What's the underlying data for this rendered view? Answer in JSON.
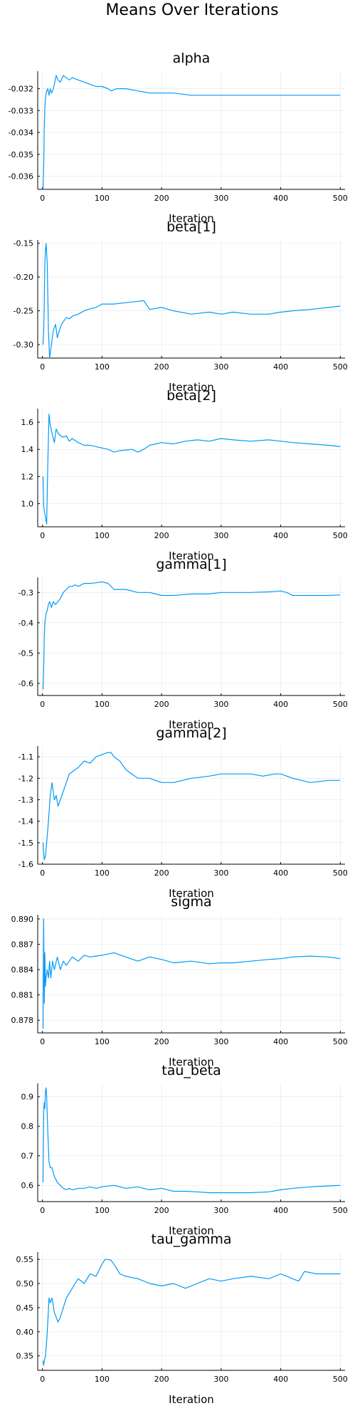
{
  "figure": {
    "title": "Means Over Iterations"
  },
  "style": {
    "line_color": "#009af9"
  },
  "chart_data": [
    {
      "type": "line",
      "title": "alpha",
      "xlabel": "Iteration",
      "xlim": [
        -8,
        508
      ],
      "xticks": [
        0,
        100,
        200,
        300,
        400,
        500
      ],
      "xtick_labels": [
        "0",
        "100",
        "200",
        "300",
        "400",
        "500"
      ],
      "ylim": [
        -0.0366,
        -0.0312
      ],
      "yticks": [
        -0.036,
        -0.035,
        -0.034,
        -0.033,
        -0.032
      ],
      "ytick_labels": [
        "-0.036",
        "-0.035",
        "-0.034",
        "-0.033",
        "-0.032"
      ],
      "grid": true,
      "series": [
        {
          "x": [
            1,
            2,
            3,
            4,
            5,
            7,
            9,
            11,
            13,
            15,
            17,
            20,
            23,
            26,
            30,
            35,
            40,
            45,
            50,
            60,
            70,
            80,
            90,
            100,
            110,
            115,
            125,
            140,
            160,
            180,
            200,
            220,
            250,
            280,
            310,
            340,
            370,
            400,
            430,
            460,
            500
          ],
          "y": [
            -0.0366,
            -0.0356,
            -0.0338,
            -0.0329,
            -0.0324,
            -0.0321,
            -0.032,
            -0.0323,
            -0.032,
            -0.0322,
            -0.0321,
            -0.0318,
            -0.0314,
            -0.0316,
            -0.0317,
            -0.0314,
            -0.0315,
            -0.0316,
            -0.0315,
            -0.0316,
            -0.0317,
            -0.0318,
            -0.0319,
            -0.0319,
            -0.032,
            -0.0321,
            -0.032,
            -0.032,
            -0.0321,
            -0.0322,
            -0.0322,
            -0.0322,
            -0.0323,
            -0.0323,
            -0.0323,
            -0.0323,
            -0.0323,
            -0.0323,
            -0.0323,
            -0.0323,
            -0.0323
          ]
        }
      ]
    },
    {
      "type": "line",
      "title": "beta[1]",
      "xlabel": "Iteration",
      "xlim": [
        -8,
        508
      ],
      "xticks": [
        0,
        100,
        200,
        300,
        400,
        500
      ],
      "xtick_labels": [
        "0",
        "100",
        "200",
        "300",
        "400",
        "500"
      ],
      "ylim": [
        -0.32,
        -0.145
      ],
      "yticks": [
        -0.3,
        -0.25,
        -0.2,
        -0.15
      ],
      "ytick_labels": [
        "-0.30",
        "-0.25",
        "-0.20",
        "-0.15"
      ],
      "grid": true,
      "series": [
        {
          "x": [
            1,
            2,
            3,
            4,
            5,
            6,
            8,
            10,
            12,
            15,
            18,
            22,
            25,
            28,
            32,
            36,
            40,
            45,
            50,
            60,
            70,
            80,
            90,
            100,
            120,
            140,
            160,
            170,
            180,
            200,
            220,
            250,
            280,
            300,
            320,
            350,
            380,
            400,
            420,
            450,
            480,
            500
          ],
          "y": [
            -0.3,
            -0.28,
            -0.24,
            -0.18,
            -0.16,
            -0.15,
            -0.18,
            -0.28,
            -0.32,
            -0.3,
            -0.28,
            -0.27,
            -0.29,
            -0.28,
            -0.27,
            -0.265,
            -0.26,
            -0.262,
            -0.258,
            -0.255,
            -0.25,
            -0.247,
            -0.245,
            -0.24,
            -0.24,
            -0.238,
            -0.236,
            -0.235,
            -0.248,
            -0.245,
            -0.25,
            -0.255,
            -0.252,
            -0.255,
            -0.252,
            -0.255,
            -0.255,
            -0.252,
            -0.25,
            -0.248,
            -0.245,
            -0.243
          ]
        }
      ]
    },
    {
      "type": "line",
      "title": "beta[2]",
      "xlabel": "Iteration",
      "xlim": [
        -8,
        508
      ],
      "xticks": [
        0,
        100,
        200,
        300,
        400,
        500
      ],
      "xtick_labels": [
        "0",
        "100",
        "200",
        "300",
        "400",
        "500"
      ],
      "ylim": [
        0.83,
        1.7
      ],
      "yticks": [
        1.0,
        1.2,
        1.4,
        1.6
      ],
      "ytick_labels": [
        "1.0",
        "1.2",
        "1.4",
        "1.6"
      ],
      "grid": true,
      "series": [
        {
          "x": [
            1,
            2,
            3,
            5,
            7,
            9,
            11,
            13,
            16,
            20,
            23,
            26,
            30,
            35,
            40,
            45,
            50,
            60,
            70,
            80,
            90,
            100,
            110,
            120,
            130,
            150,
            160,
            170,
            180,
            200,
            220,
            240,
            260,
            280,
            300,
            320,
            350,
            380,
            400,
            420,
            450,
            480,
            500
          ],
          "y": [
            1.2,
            0.98,
            0.95,
            0.9,
            0.85,
            1.3,
            1.66,
            1.58,
            1.52,
            1.45,
            1.55,
            1.52,
            1.5,
            1.49,
            1.5,
            1.46,
            1.48,
            1.45,
            1.43,
            1.43,
            1.42,
            1.41,
            1.4,
            1.38,
            1.39,
            1.4,
            1.38,
            1.4,
            1.43,
            1.45,
            1.44,
            1.46,
            1.47,
            1.46,
            1.48,
            1.47,
            1.46,
            1.47,
            1.46,
            1.45,
            1.44,
            1.43,
            1.42
          ]
        }
      ]
    },
    {
      "type": "line",
      "title": "gamma[1]",
      "xlabel": "Iteration",
      "xlim": [
        -8,
        508
      ],
      "xticks": [
        0,
        100,
        200,
        300,
        400,
        500
      ],
      "xtick_labels": [
        "0",
        "100",
        "200",
        "300",
        "400",
        "500"
      ],
      "ylim": [
        -0.64,
        -0.25
      ],
      "yticks": [
        -0.6,
        -0.5,
        -0.4,
        -0.3
      ],
      "ytick_labels": [
        "-0.6",
        "-0.5",
        "-0.4",
        "-0.3"
      ],
      "grid": true,
      "series": [
        {
          "x": [
            1,
            2,
            3,
            4,
            6,
            8,
            10,
            12,
            15,
            18,
            22,
            26,
            30,
            35,
            40,
            45,
            50,
            55,
            60,
            70,
            80,
            90,
            100,
            110,
            120,
            140,
            160,
            180,
            200,
            220,
            250,
            280,
            300,
            320,
            350,
            380,
            400,
            410,
            420,
            450,
            480,
            500
          ],
          "y": [
            -0.62,
            -0.55,
            -0.45,
            -0.4,
            -0.37,
            -0.36,
            -0.34,
            -0.33,
            -0.35,
            -0.33,
            -0.34,
            -0.33,
            -0.32,
            -0.3,
            -0.29,
            -0.28,
            -0.28,
            -0.275,
            -0.28,
            -0.27,
            -0.27,
            -0.268,
            -0.265,
            -0.27,
            -0.29,
            -0.29,
            -0.3,
            -0.3,
            -0.31,
            -0.31,
            -0.305,
            -0.305,
            -0.3,
            -0.3,
            -0.3,
            -0.298,
            -0.295,
            -0.3,
            -0.31,
            -0.31,
            -0.31,
            -0.308
          ]
        }
      ]
    },
    {
      "type": "line",
      "title": "gamma[2]",
      "xlabel": "Iteration",
      "xlim": [
        -8,
        508
      ],
      "xticks": [
        0,
        100,
        200,
        300,
        400,
        500
      ],
      "xtick_labels": [
        "0",
        "100",
        "200",
        "300",
        "400",
        "500"
      ],
      "ylim": [
        -1.6,
        -1.05
      ],
      "yticks": [
        -1.6,
        -1.5,
        -1.4,
        -1.3,
        -1.2,
        -1.1
      ],
      "ytick_labels": [
        "-1.6",
        "-1.5",
        "-1.4",
        "-1.3",
        "-1.2",
        "-1.1"
      ],
      "grid": true,
      "series": [
        {
          "x": [
            1,
            2,
            3,
            5,
            7,
            10,
            13,
            16,
            20,
            23,
            26,
            30,
            35,
            40,
            45,
            50,
            60,
            70,
            80,
            90,
            100,
            110,
            115,
            120,
            130,
            140,
            150,
            160,
            180,
            200,
            220,
            250,
            280,
            300,
            320,
            350,
            370,
            390,
            400,
            420,
            450,
            480,
            500
          ],
          "y": [
            -1.5,
            -1.55,
            -1.58,
            -1.56,
            -1.5,
            -1.4,
            -1.28,
            -1.22,
            -1.3,
            -1.28,
            -1.33,
            -1.3,
            -1.26,
            -1.22,
            -1.18,
            -1.17,
            -1.15,
            -1.12,
            -1.13,
            -1.1,
            -1.09,
            -1.08,
            -1.08,
            -1.1,
            -1.12,
            -1.16,
            -1.18,
            -1.2,
            -1.2,
            -1.22,
            -1.22,
            -1.2,
            -1.19,
            -1.18,
            -1.18,
            -1.18,
            -1.19,
            -1.18,
            -1.18,
            -1.2,
            -1.22,
            -1.21,
            -1.21
          ]
        }
      ]
    },
    {
      "type": "line",
      "title": "sigma",
      "xlabel": "Iteration",
      "xlim": [
        -8,
        508
      ],
      "xticks": [
        0,
        100,
        200,
        300,
        400,
        500
      ],
      "xtick_labels": [
        "0",
        "100",
        "200",
        "300",
        "400",
        "500"
      ],
      "ylim": [
        0.8765,
        0.8905
      ],
      "yticks": [
        0.878,
        0.881,
        0.884,
        0.887,
        0.89
      ],
      "ytick_labels": [
        "0.878",
        "0.881",
        "0.884",
        "0.887",
        "0.890"
      ],
      "grid": true,
      "series": [
        {
          "x": [
            1,
            2,
            3,
            4,
            5,
            6,
            8,
            10,
            12,
            14,
            17,
            20,
            25,
            30,
            35,
            40,
            45,
            50,
            60,
            70,
            80,
            100,
            120,
            140,
            160,
            180,
            200,
            220,
            250,
            280,
            300,
            320,
            350,
            380,
            400,
            420,
            450,
            480,
            500
          ],
          "y": [
            0.877,
            0.89,
            0.88,
            0.886,
            0.882,
            0.883,
            0.884,
            0.883,
            0.885,
            0.883,
            0.885,
            0.884,
            0.8855,
            0.884,
            0.885,
            0.8845,
            0.885,
            0.8855,
            0.885,
            0.8857,
            0.8855,
            0.8857,
            0.886,
            0.8855,
            0.885,
            0.8855,
            0.8852,
            0.8848,
            0.885,
            0.8847,
            0.8848,
            0.8848,
            0.885,
            0.8852,
            0.8853,
            0.8855,
            0.8856,
            0.8855,
            0.8853
          ]
        }
      ]
    },
    {
      "type": "line",
      "title": "tau_beta",
      "xlabel": "Iteration",
      "xlim": [
        -8,
        508
      ],
      "xticks": [
        0,
        100,
        200,
        300,
        400,
        500
      ],
      "xtick_labels": [
        "0",
        "100",
        "200",
        "300",
        "400",
        "500"
      ],
      "ylim": [
        0.545,
        0.945
      ],
      "yticks": [
        0.6,
        0.7,
        0.8,
        0.9
      ],
      "ytick_labels": [
        "0.6",
        "0.7",
        "0.8",
        "0.9"
      ],
      "grid": true,
      "series": [
        {
          "x": [
            1,
            2,
            3,
            4,
            5,
            6,
            7,
            9,
            11,
            13,
            16,
            20,
            25,
            30,
            35,
            40,
            45,
            50,
            60,
            70,
            80,
            90,
            100,
            120,
            140,
            160,
            180,
            200,
            220,
            240,
            260,
            280,
            300,
            320,
            350,
            380,
            400,
            420,
            450,
            480,
            500
          ],
          "y": [
            0.61,
            0.85,
            0.88,
            0.86,
            0.92,
            0.93,
            0.9,
            0.78,
            0.68,
            0.66,
            0.66,
            0.63,
            0.61,
            0.6,
            0.59,
            0.585,
            0.59,
            0.585,
            0.59,
            0.59,
            0.595,
            0.59,
            0.595,
            0.6,
            0.59,
            0.595,
            0.585,
            0.59,
            0.58,
            0.58,
            0.578,
            0.575,
            0.575,
            0.575,
            0.575,
            0.578,
            0.585,
            0.59,
            0.595,
            0.598,
            0.6
          ]
        }
      ]
    },
    {
      "type": "line",
      "title": "tau_gamma",
      "xlabel": "Iteration",
      "xlim": [
        -8,
        508
      ],
      "xticks": [
        0,
        100,
        200,
        300,
        400,
        500
      ],
      "xtick_labels": [
        "0",
        "100",
        "200",
        "300",
        "400",
        "500"
      ],
      "ylim": [
        0.32,
        0.565
      ],
      "yticks": [
        0.35,
        0.4,
        0.45,
        0.5,
        0.55
      ],
      "ytick_labels": [
        "0.35",
        "0.40",
        "0.45",
        "0.50",
        "0.55"
      ],
      "grid": true,
      "series": [
        {
          "x": [
            1,
            2,
            3,
            5,
            7,
            9,
            11,
            13,
            16,
            20,
            23,
            26,
            30,
            35,
            40,
            45,
            50,
            55,
            60,
            70,
            80,
            90,
            100,
            105,
            110,
            115,
            120,
            130,
            140,
            160,
            180,
            200,
            220,
            240,
            260,
            280,
            300,
            320,
            350,
            380,
            400,
            420,
            430,
            440,
            460,
            480,
            500
          ],
          "y": [
            0.34,
            0.33,
            0.34,
            0.35,
            0.38,
            0.42,
            0.47,
            0.46,
            0.47,
            0.44,
            0.43,
            0.42,
            0.43,
            0.45,
            0.47,
            0.48,
            0.49,
            0.5,
            0.51,
            0.5,
            0.52,
            0.515,
            0.54,
            0.55,
            0.55,
            0.548,
            0.54,
            0.52,
            0.515,
            0.51,
            0.5,
            0.495,
            0.5,
            0.49,
            0.5,
            0.51,
            0.505,
            0.51,
            0.515,
            0.51,
            0.52,
            0.51,
            0.505,
            0.525,
            0.52,
            0.52,
            0.52
          ]
        }
      ]
    }
  ]
}
